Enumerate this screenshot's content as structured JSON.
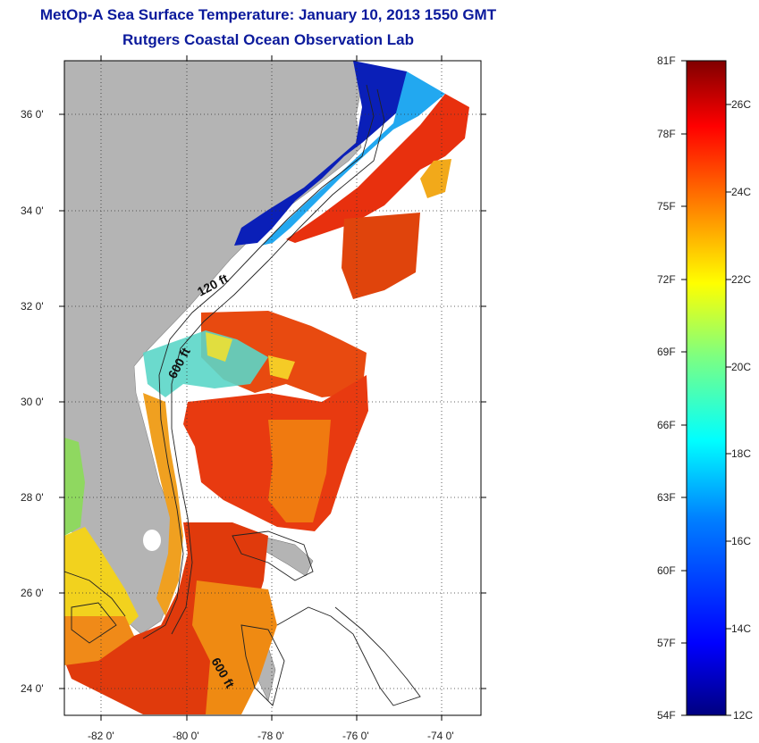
{
  "title": "MetOp-A Sea Surface Temperature:  January 10, 2013 1550 GMT",
  "subtitle": "Rutgers Coastal Ocean Observation Lab",
  "map": {
    "lat_labels": [
      "36 0'",
      "34 0'",
      "32 0'",
      "30 0'",
      "28 0'",
      "26 0'",
      "24 0'"
    ],
    "lon_labels": [
      "-82 0'",
      "-80 0'",
      "-78 0'",
      "-76 0'",
      "-74 0'"
    ],
    "contour_labels": [
      "120 ft",
      "600 ft",
      "600 ft"
    ],
    "colors": {
      "land": "#b4b4b4",
      "no_data": "#ffffff"
    }
  },
  "colorbar": {
    "f_labels": [
      "81F",
      "78F",
      "75F",
      "72F",
      "69F",
      "66F",
      "63F",
      "60F",
      "57F",
      "54F"
    ],
    "c_labels": [
      "26C",
      "24C",
      "22C",
      "20C",
      "18C",
      "16C",
      "14C",
      "12C"
    ],
    "colors": [
      "#800000",
      "#ff0000",
      "#ff7f00",
      "#ffff00",
      "#00ff7f",
      "#00ffff",
      "#007fff",
      "#0000ff",
      "#000080"
    ]
  }
}
